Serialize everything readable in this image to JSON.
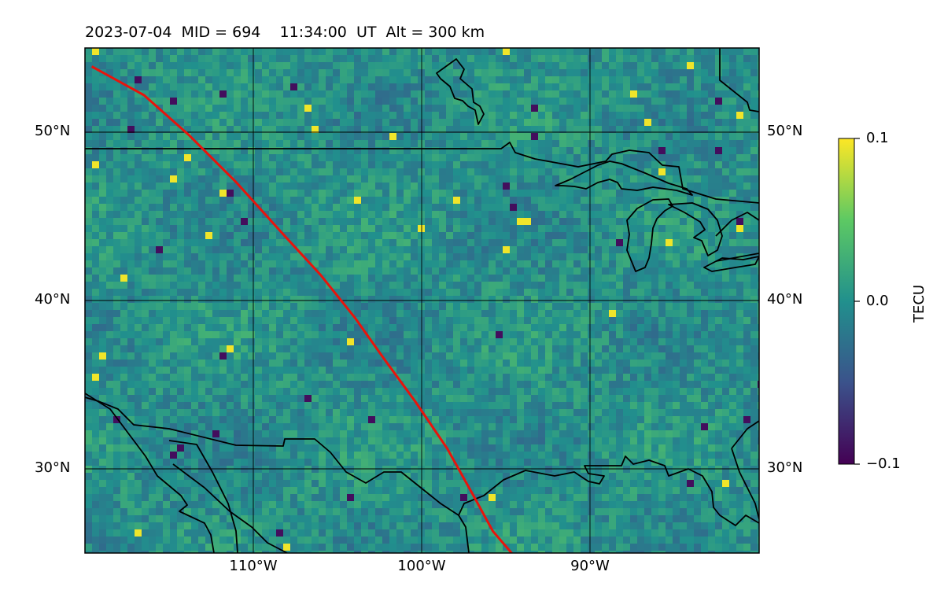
{
  "title": "2023-07-04  MID = 694    11:34:00  UT  Alt = 300 km",
  "lat_labels": [
    "50°N",
    "40°N",
    "30°N"
  ],
  "lon_labels": [
    "110°W",
    "100°W",
    "90°W"
  ],
  "map": {
    "lon_range": [
      -120,
      -80
    ],
    "lat_range": [
      25,
      55
    ],
    "gridlines": true,
    "track_color": "#e8140c",
    "track": [
      [
        -119.6,
        53.9
      ],
      [
        -116.5,
        52.2
      ],
      [
        -113.8,
        49.8
      ],
      [
        -111.0,
        47.0
      ],
      [
        -108.3,
        44.0
      ],
      [
        -106.0,
        41.5
      ],
      [
        -104.0,
        39.0
      ],
      [
        -102.3,
        36.6
      ],
      [
        -100.4,
        34.0
      ],
      [
        -98.5,
        31.2
      ],
      [
        -97.0,
        28.5
      ],
      [
        -95.8,
        26.3
      ],
      [
        -94.6,
        24.9
      ]
    ]
  },
  "colorbar": {
    "label": "TECU",
    "ticks": [
      "0.1",
      "0.0",
      "−0.1"
    ],
    "range": [
      -0.1,
      0.1
    ],
    "colors": [
      "#440154",
      "#3b528b",
      "#21908d",
      "#5dc963",
      "#fde725"
    ]
  }
}
